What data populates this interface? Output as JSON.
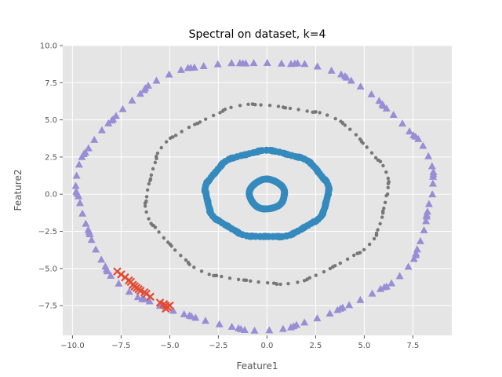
{
  "chart_data": {
    "type": "scatter",
    "title": "Spectral on dataset, k=4",
    "xlabel": "Feature1",
    "ylabel": "Feature2",
    "xlim": [
      -10.5,
      9.5
    ],
    "ylim": [
      -9.5,
      10.0
    ],
    "xticks": [
      -10.0,
      -7.5,
      -5.0,
      -2.5,
      0.0,
      2.5,
      5.0,
      7.5
    ],
    "xtick_labels": [
      "−10.0",
      "−7.5",
      "−5.0",
      "−2.5",
      "0.0",
      "2.5",
      "5.0",
      "7.5"
    ],
    "yticks": [
      -7.5,
      -5.0,
      -2.5,
      0.0,
      2.5,
      5.0,
      7.5,
      10.0
    ],
    "ytick_labels": [
      "−7.5",
      "−5.0",
      "−2.5",
      "0.0",
      "2.5",
      "5.0",
      "7.5",
      "10.0"
    ],
    "grid": true,
    "style": "ggplot",
    "series": [
      {
        "marker": "triangle",
        "color": "#988ed5",
        "ring": {
          "cx": -0.6,
          "cy": 0.0,
          "rx": 9.1,
          "ry": 9.0,
          "count": 130
        }
      },
      {
        "marker": "circle-small",
        "color": "#777777",
        "ring": {
          "cx": 0.0,
          "cy": 0.0,
          "rx": 6.2,
          "ry": 6.0,
          "count": 150
        }
      },
      {
        "marker": "circle",
        "color": "#348abd",
        "rings": [
          {
            "cx": 0.0,
            "cy": 0.0,
            "rx": 3.15,
            "ry": 2.9,
            "count": 170
          },
          {
            "cx": 0.0,
            "cy": 0.0,
            "rx": 0.9,
            "ry": 1.0,
            "count": 90
          }
        ]
      },
      {
        "marker": "x",
        "color": "#e24a33",
        "points": [
          [
            -7.7,
            -5.2
          ],
          [
            -7.5,
            -5.4
          ],
          [
            -7.3,
            -5.6
          ],
          [
            -7.1,
            -5.8
          ],
          [
            -7.0,
            -5.9
          ],
          [
            -6.9,
            -6.1
          ],
          [
            -6.8,
            -6.2
          ],
          [
            -6.7,
            -6.3
          ],
          [
            -6.6,
            -6.4
          ],
          [
            -6.5,
            -6.5
          ],
          [
            -6.3,
            -6.6
          ],
          [
            -6.2,
            -6.7
          ],
          [
            -6.0,
            -6.9
          ],
          [
            -5.5,
            -7.3
          ],
          [
            -5.3,
            -7.4
          ],
          [
            -5.2,
            -7.5
          ],
          [
            -5.1,
            -7.6
          ],
          [
            -5.0,
            -7.5
          ],
          [
            -5.2,
            -7.7
          ]
        ]
      }
    ]
  }
}
